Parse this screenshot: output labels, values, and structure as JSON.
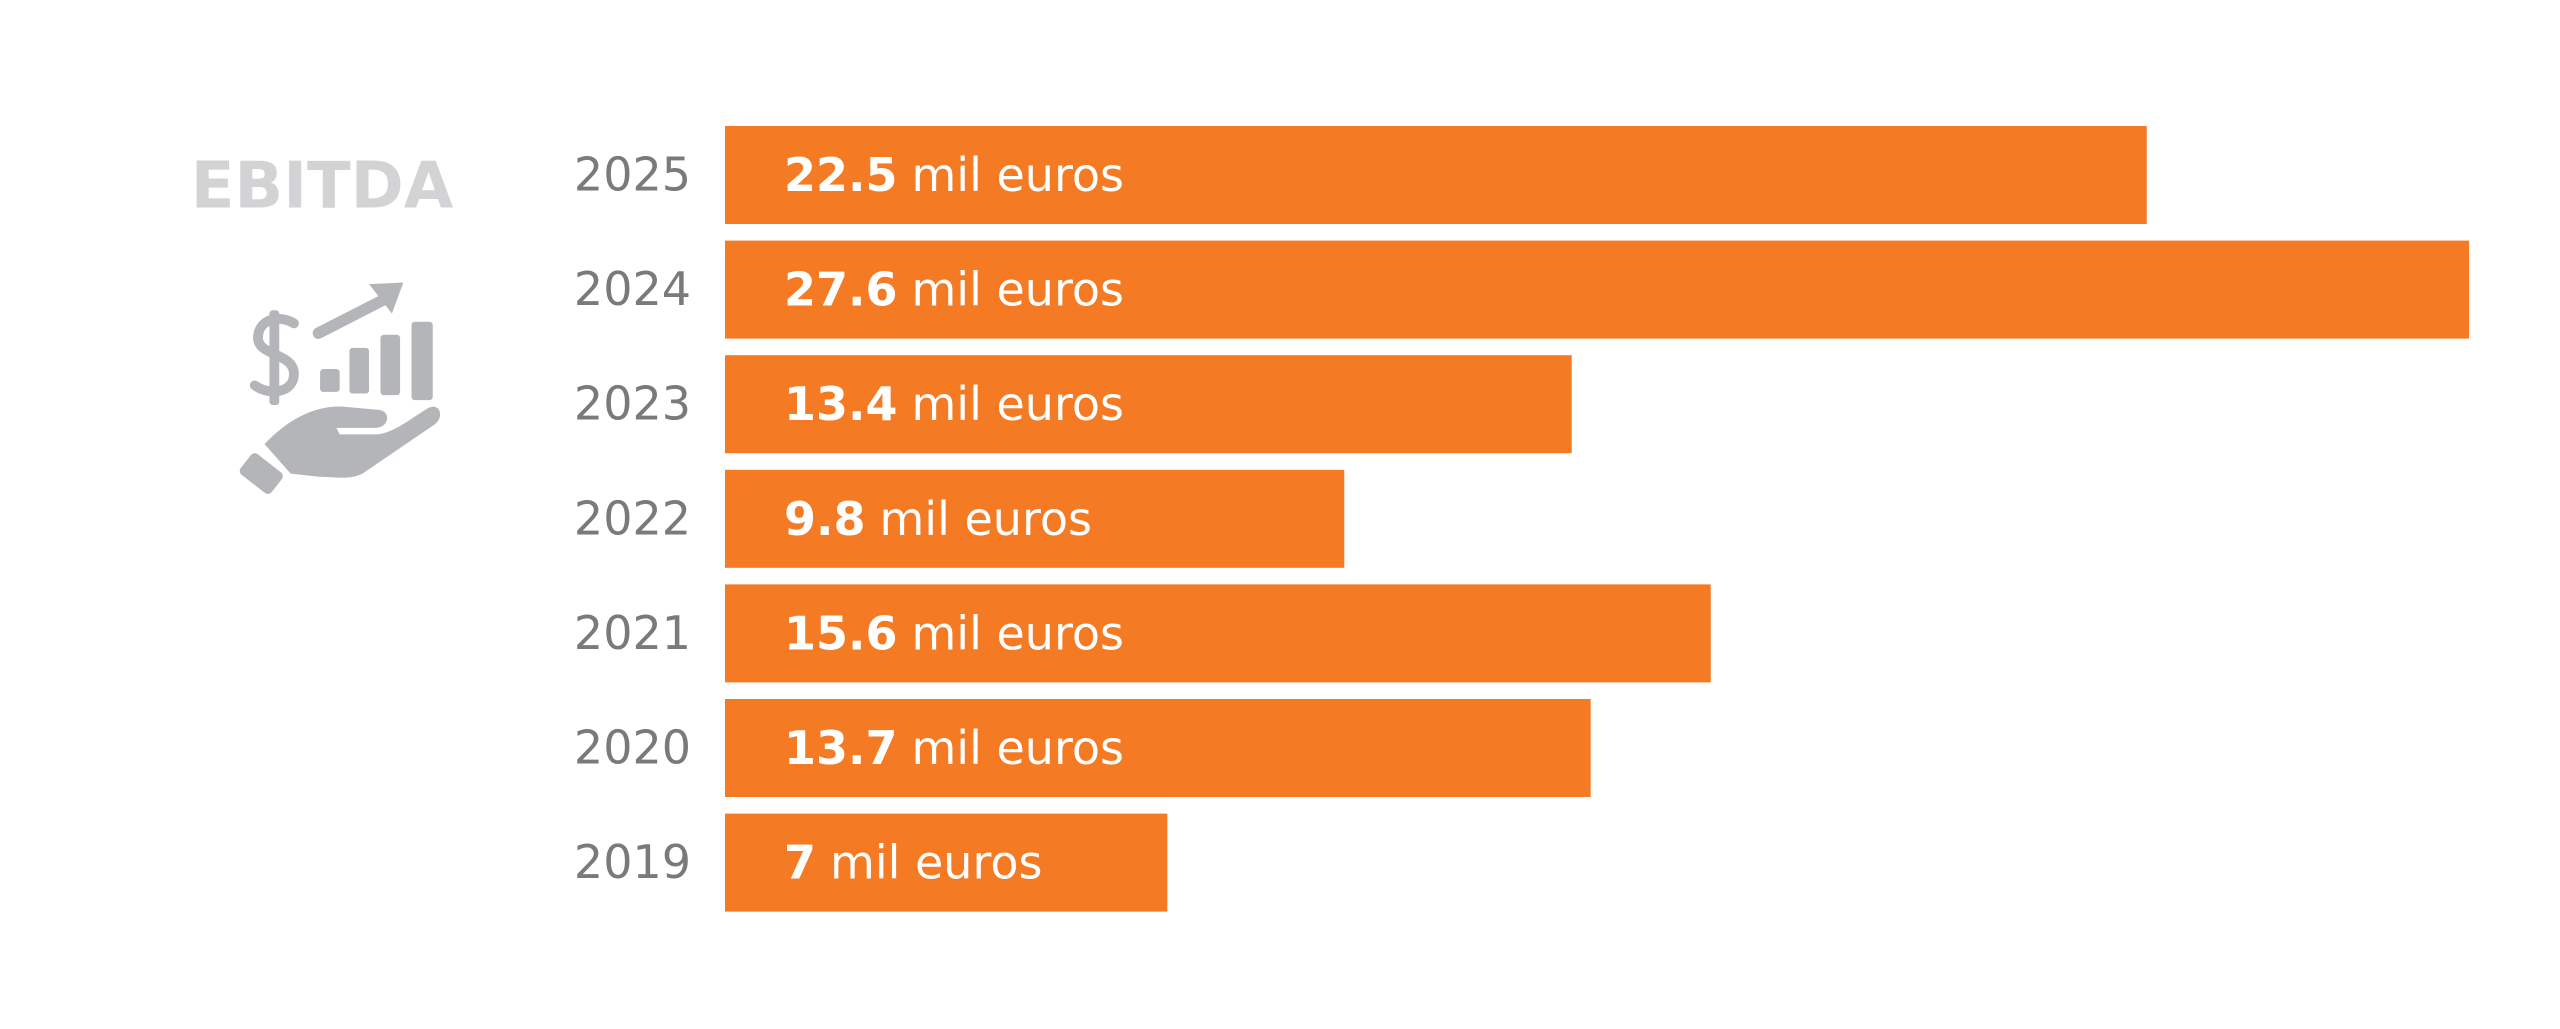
{
  "chart_data": {
    "type": "bar",
    "orientation": "horizontal",
    "title": "EBITDA",
    "categories": [
      "2025",
      "2024",
      "2023",
      "2022",
      "2021",
      "2020",
      "2019"
    ],
    "values": [
      22.5,
      27.6,
      13.4,
      9.8,
      15.6,
      13.7,
      7
    ],
    "value_suffix": "mil euros",
    "color": "#f47a24",
    "xlim": [
      0,
      27.6
    ]
  }
}
